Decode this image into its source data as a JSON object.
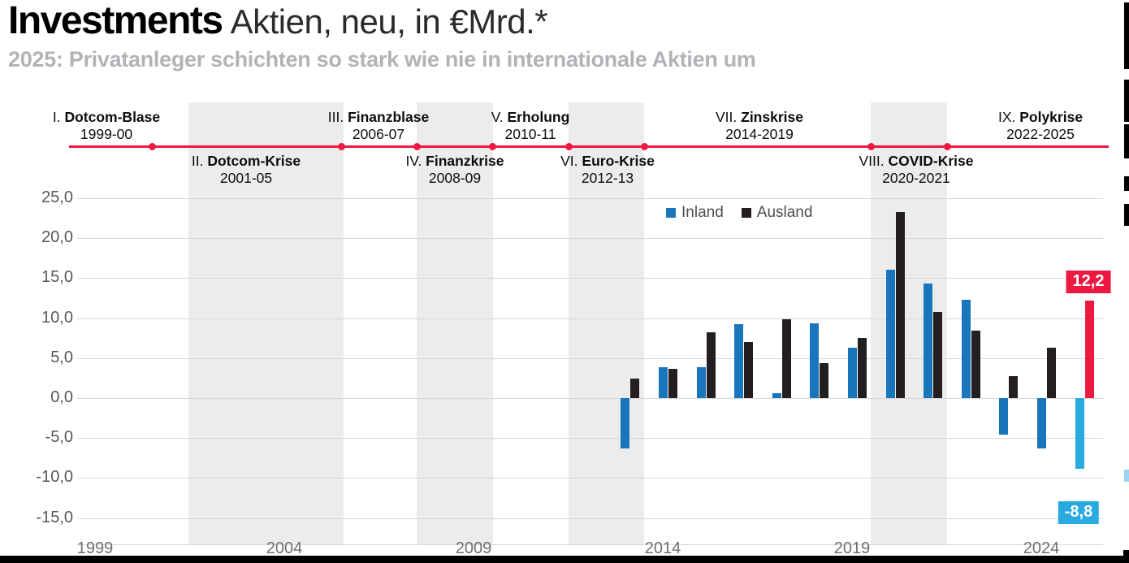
{
  "header": {
    "title": "Investments",
    "title_suffix": "Aktien, neu, in €Mrd.*",
    "subtitle": "2025: Privatanleger schichten so stark wie nie in internationale Aktien um"
  },
  "legend": {
    "inland": "Inland",
    "ausland": "Ausland"
  },
  "timeline": {
    "color": "#ed1941",
    "events": [
      {
        "numeral": "I.",
        "name": "Dotcom-Blase",
        "years": "1999-00",
        "side": "above"
      },
      {
        "numeral": "II.",
        "name": "Dotcom-Krise",
        "years": "2001-05",
        "side": "below"
      },
      {
        "numeral": "III.",
        "name": "Finanzblase",
        "years": "2006-07",
        "side": "above"
      },
      {
        "numeral": "IV.",
        "name": "Finanzkrise",
        "years": "2008-09",
        "side": "below"
      },
      {
        "numeral": "V.",
        "name": "Erholung",
        "years": "2010-11",
        "side": "above"
      },
      {
        "numeral": "VI.",
        "name": "Euro-Krise",
        "years": "2012-13",
        "side": "below"
      },
      {
        "numeral": "VII.",
        "name": "Zinskrise",
        "years": "2014-2019",
        "side": "above"
      },
      {
        "numeral": "VIII.",
        "name": "COVID-Krise",
        "years": "2020-2021",
        "side": "below"
      },
      {
        "numeral": "IX.",
        "name": "Polykrise",
        "years": "2022-2025",
        "side": "above"
      }
    ]
  },
  "chart_data": {
    "type": "bar",
    "title": "Investments Aktien, neu, in €Mrd.*",
    "ylabel": "€Mrd.",
    "ylim": [
      -15,
      25
    ],
    "grid": true,
    "legend_position": "top-right-inside",
    "categories": [
      2013,
      2014,
      2015,
      2016,
      2017,
      2018,
      2019,
      2020,
      2021,
      2022,
      2023,
      2024,
      2025
    ],
    "series": [
      {
        "name": "Inland",
        "color": "#1976bd",
        "values": [
          -6.3,
          3.9,
          3.9,
          9.2,
          0.6,
          9.3,
          6.3,
          16.1,
          14.3,
          12.3,
          -4.6,
          -6.3,
          -8.8
        ]
      },
      {
        "name": "Ausland",
        "color": "#231f20",
        "values": [
          2.4,
          3.7,
          8.2,
          7.0,
          9.9,
          4.4,
          7.5,
          23.3,
          10.8,
          8.4,
          2.7,
          6.3,
          12.2
        ]
      }
    ],
    "highlight_year": 2025,
    "highlight_colors": {
      "Inland": "#29abe2",
      "Ausland": "#ed1941"
    },
    "yticks": {
      "values": [
        25,
        20,
        15,
        10,
        5,
        0,
        -5,
        -10,
        -15
      ],
      "labels": [
        "25,0",
        "20,0",
        "15,0",
        "10,0",
        "5,0",
        "0,0",
        "-5,0",
        "-10,0",
        "-15,0"
      ]
    },
    "xticks": {
      "values": [
        1999,
        2004,
        2009,
        2014,
        2019,
        2024
      ],
      "labels": [
        "1999",
        "2004",
        "2009",
        "2014",
        "2019",
        "2024"
      ]
    },
    "annotations": [
      {
        "text": "12,2",
        "color": "#ed1941",
        "series": "Ausland",
        "year": 2025
      },
      {
        "text": "-8,8",
        "color": "#29abe2",
        "series": "Inland",
        "year": 2025
      }
    ]
  }
}
